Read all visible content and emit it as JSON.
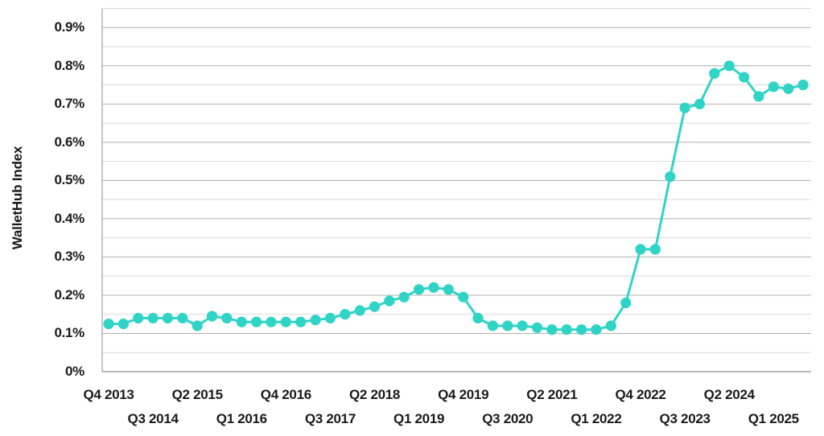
{
  "chart_data": {
    "type": "line",
    "title": "",
    "ylabel": "WalletHub Index",
    "marker": "circle",
    "grid": true,
    "legend": "none",
    "ylim": [
      0,
      0.95
    ],
    "y_unit": "%",
    "x": [
      "Q4 2013",
      "Q1 2014",
      "Q2 2014",
      "Q3 2014",
      "Q4 2014",
      "Q1 2015",
      "Q2 2015",
      "Q3 2015",
      "Q4 2015",
      "Q1 2016",
      "Q2 2016",
      "Q3 2016",
      "Q4 2016",
      "Q1 2017",
      "Q2 2017",
      "Q3 2017",
      "Q4 2017",
      "Q1 2018",
      "Q2 2018",
      "Q3 2018",
      "Q4 2018",
      "Q1 2019",
      "Q2 2019",
      "Q3 2019",
      "Q4 2019",
      "Q1 2020",
      "Q2 2020",
      "Q3 2020",
      "Q4 2020",
      "Q1 2021",
      "Q2 2021",
      "Q3 2021",
      "Q4 2021",
      "Q1 2022",
      "Q2 2022",
      "Q3 2022",
      "Q4 2022",
      "Q1 2023",
      "Q2 2023",
      "Q3 2023",
      "Q4 2023",
      "Q1 2024",
      "Q2 2024",
      "Q3 2024",
      "Q4 2024",
      "Q1 2025",
      "Q2 2025",
      "Q3 2025"
    ],
    "values": [
      0.125,
      0.125,
      0.14,
      0.14,
      0.14,
      0.14,
      0.12,
      0.145,
      0.14,
      0.13,
      0.13,
      0.13,
      0.13,
      0.13,
      0.135,
      0.14,
      0.15,
      0.16,
      0.17,
      0.185,
      0.195,
      0.215,
      0.22,
      0.215,
      0.195,
      0.14,
      0.12,
      0.12,
      0.12,
      0.115,
      0.11,
      0.11,
      0.11,
      0.11,
      0.12,
      0.18,
      0.32,
      0.32,
      0.51,
      0.69,
      0.7,
      0.78,
      0.8,
      0.77,
      0.72,
      0.745,
      0.74,
      0.75
    ],
    "y_tick_values": [
      0,
      0.1,
      0.2,
      0.3,
      0.4,
      0.5,
      0.6,
      0.7,
      0.8,
      0.9
    ],
    "y_tick_labels": [
      "0%",
      "0.1%",
      "0.2%",
      "0.3%",
      "0.4%",
      "0.5%",
      "0.6%",
      "0.7%",
      "0.8%",
      "0.9%"
    ],
    "x_ticks": [
      {
        "index": 0,
        "label": "Q4 2013",
        "row": 1
      },
      {
        "index": 3,
        "label": "Q3 2014",
        "row": 2
      },
      {
        "index": 6,
        "label": "Q2 2015",
        "row": 1
      },
      {
        "index": 9,
        "label": "Q1 2016",
        "row": 2
      },
      {
        "index": 12,
        "label": "Q4 2016",
        "row": 1
      },
      {
        "index": 15,
        "label": "Q3 2017",
        "row": 2
      },
      {
        "index": 18,
        "label": "Q2 2018",
        "row": 1
      },
      {
        "index": 21,
        "label": "Q1 2019",
        "row": 2
      },
      {
        "index": 24,
        "label": "Q4 2019",
        "row": 1
      },
      {
        "index": 27,
        "label": "Q3 2020",
        "row": 2
      },
      {
        "index": 30,
        "label": "Q2 2021",
        "row": 1
      },
      {
        "index": 33,
        "label": "Q1 2022",
        "row": 2
      },
      {
        "index": 36,
        "label": "Q4 2022",
        "row": 1
      },
      {
        "index": 39,
        "label": "Q3 2023",
        "row": 2
      },
      {
        "index": 42,
        "label": "Q2 2024",
        "row": 1
      },
      {
        "index": 45,
        "label": "Q1 2025",
        "row": 2
      }
    ],
    "colors": {
      "series": "#2FD4C6",
      "grid_major": "#b0b0b0",
      "grid_minor": "#dadada",
      "axis": "#a0a0a0",
      "text": "#1a1a1a",
      "background": "#ffffff"
    }
  }
}
